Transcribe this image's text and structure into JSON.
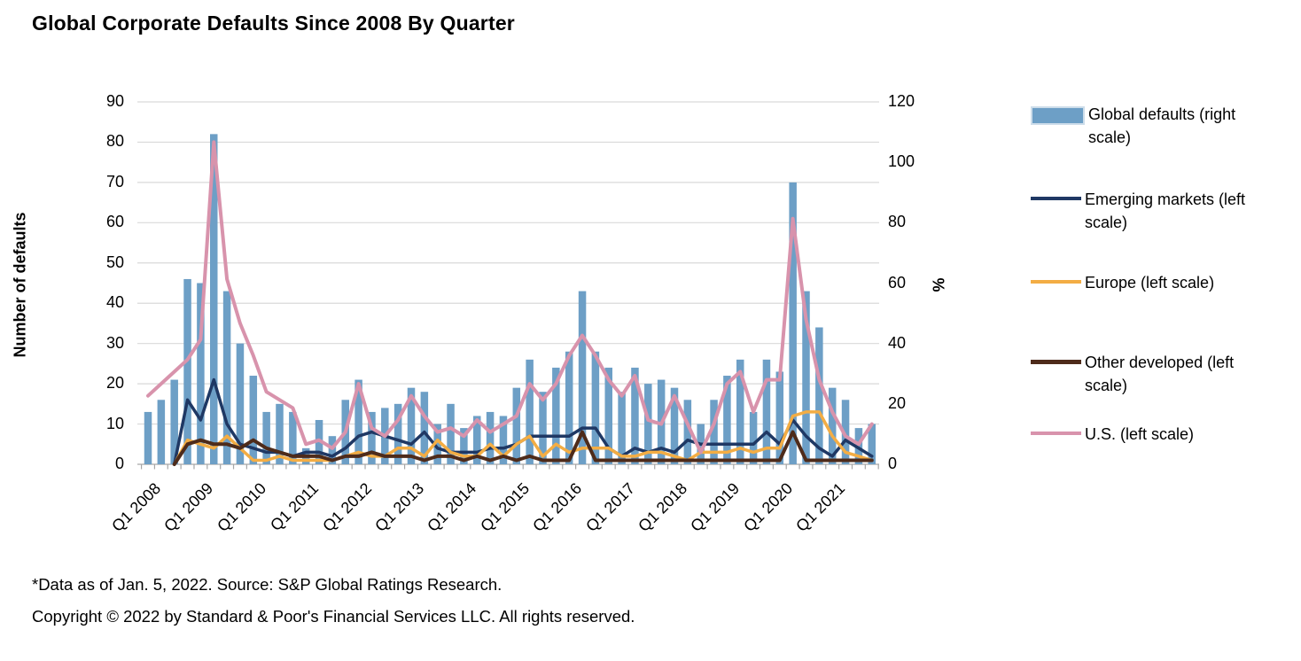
{
  "title": "Global Corporate Defaults Since 2008 By Quarter",
  "footnotes": [
    "*Data as of Jan. 5, 2022. Source: S&P Global Ratings Research.",
    "Copyright © 2022 by Standard & Poor's Financial Services LLC. All rights reserved."
  ],
  "colors": {
    "bar": "#6D9FC6",
    "bar_swatch_border": "#cdddea",
    "emerging": "#1F3864",
    "europe": "#F3AD44",
    "other_developed": "#4E2B1A",
    "us": "#D893AC",
    "gridline": "#D9D9D9",
    "axis": "#A6A6A6",
    "text": "#000000"
  },
  "chart_data": {
    "type": "bar",
    "subtype": "bar-line combo, dual axis",
    "x_start": "Q1 2008",
    "x_end": "Q4 2021",
    "x_frequency": "quarterly",
    "x_tick_labels": [
      "Q1 2008",
      "Q1 2009",
      "Q1 2010",
      "Q1 2011",
      "Q1 2012",
      "Q1 2013",
      "Q1 2014",
      "Q1 2015",
      "Q1 2016",
      "Q1 2017",
      "Q1 2018",
      "Q1 2019",
      "Q1 2020",
      "Q1 2021"
    ],
    "left_axis": {
      "title": "Number of defaults",
      "min": 0,
      "max": 90,
      "tick_labels": [
        "0",
        "10",
        "20",
        "30",
        "40",
        "50",
        "60",
        "70",
        "80",
        "90"
      ]
    },
    "right_axis": {
      "title": "%",
      "min": 0,
      "max": 120,
      "tick_labels": [
        "0",
        "20",
        "40",
        "60",
        "80",
        "100",
        "120"
      ]
    },
    "grid": "horizontal only",
    "legend_position": "right",
    "series": [
      {
        "name": "Global defaults (right scale)",
        "type": "bar",
        "color_key": "bar",
        "values": [
          13,
          16,
          21,
          46,
          45,
          82,
          43,
          30,
          22,
          13,
          15,
          13,
          4,
          11,
          7,
          16,
          21,
          13,
          14,
          15,
          19,
          18,
          10,
          15,
          9,
          12,
          13,
          12,
          19,
          26,
          18,
          24,
          28,
          43,
          28,
          24,
          18,
          24,
          20,
          21,
          19,
          16,
          10,
          16,
          22,
          26,
          13,
          26,
          23,
          70,
          43,
          34,
          19,
          16,
          9,
          10
        ]
      },
      {
        "name": "Emerging markets (left scale)",
        "type": "line",
        "color_key": "emerging",
        "values": [
          null,
          null,
          0,
          16,
          11,
          21,
          10,
          5,
          4,
          3,
          3,
          2,
          3,
          3,
          2,
          4,
          7,
          8,
          7,
          6,
          5,
          8,
          4,
          3,
          3,
          3,
          4,
          4,
          5,
          7,
          7,
          7,
          7,
          9,
          9,
          4,
          2,
          4,
          3,
          4,
          3,
          6,
          5,
          5,
          5,
          5,
          5,
          8,
          5,
          11,
          7,
          4,
          2,
          6,
          4,
          2
        ]
      },
      {
        "name": "Europe (left scale)",
        "type": "line",
        "color_key": "europe",
        "values": [
          null,
          null,
          0,
          6,
          5,
          4,
          7,
          4,
          1,
          1,
          2,
          1,
          1,
          1,
          1,
          2,
          3,
          2,
          2,
          4,
          4,
          2,
          6,
          3,
          2,
          2,
          5,
          2,
          5,
          7,
          2,
          5,
          3,
          4,
          4,
          4,
          2,
          2,
          3,
          3,
          2,
          1,
          3,
          3,
          3,
          4,
          3,
          4,
          4,
          12,
          13,
          13,
          7,
          3,
          2,
          1
        ]
      },
      {
        "name": "Other developed (left scale)",
        "type": "line",
        "color_key": "other_developed",
        "values": [
          null,
          null,
          0,
          5,
          6,
          5,
          5,
          4,
          6,
          4,
          3,
          2,
          2,
          2,
          1,
          2,
          2,
          3,
          2,
          2,
          2,
          1,
          2,
          2,
          1,
          2,
          1,
          2,
          1,
          2,
          1,
          1,
          1,
          8,
          1,
          1,
          1,
          1,
          1,
          1,
          1,
          1,
          1,
          1,
          1,
          1,
          1,
          1,
          1,
          8,
          1,
          1,
          1,
          1,
          1,
          1
        ]
      },
      {
        "name": "U.S. (left scale)",
        "type": "line",
        "color_key": "us",
        "values": [
          17,
          20,
          23,
          26,
          31,
          80,
          46,
          35,
          27,
          18,
          16,
          14,
          5,
          6,
          4,
          8,
          20,
          9,
          7,
          11,
          17,
          12,
          8,
          9,
          7,
          11,
          8,
          10,
          12,
          20,
          16,
          20,
          27,
          32,
          27,
          21,
          17,
          22,
          11,
          10,
          17,
          10,
          3,
          10,
          20,
          23,
          13,
          21,
          21,
          61,
          36,
          21,
          13,
          7,
          5,
          10
        ]
      }
    ]
  }
}
